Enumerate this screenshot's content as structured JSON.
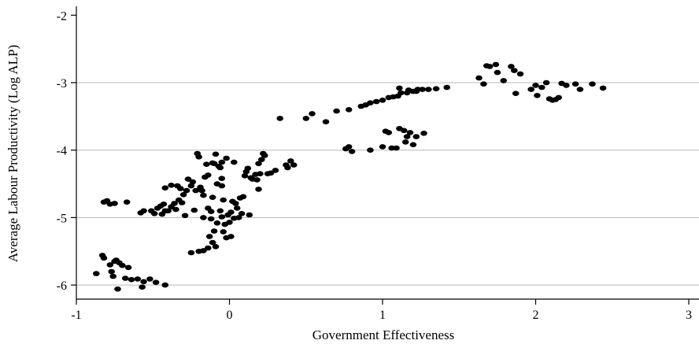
{
  "chart_data": {
    "type": "scatter",
    "title": "",
    "xlabel": "Government Effectiveness",
    "ylabel": "Average Labour Productivity (Log ALP)",
    "xlim": [
      -1.02,
      3.05
    ],
    "ylim": [
      -6.2,
      -1.9
    ],
    "x_ticks": [
      -1,
      0,
      1,
      2,
      3
    ],
    "x_tick_labels": [
      "-1",
      "0",
      "1",
      "2",
      "3"
    ],
    "y_ticks": [
      -2,
      -3,
      -4,
      -5,
      -6
    ],
    "y_tick_labels": [
      "-2",
      "-3",
      "-4",
      "-5",
      "-6"
    ],
    "grid": "horizontal",
    "marker_color": "#000000",
    "points": [
      [
        -0.87,
        -5.83
      ],
      [
        -0.83,
        -5.56
      ],
      [
        -0.82,
        -5.6
      ],
      [
        -0.78,
        -5.7
      ],
      [
        -0.77,
        -5.8
      ],
      [
        -0.76,
        -5.87
      ],
      [
        -0.75,
        -5.65
      ],
      [
        -0.74,
        -5.63
      ],
      [
        -0.72,
        -5.67
      ],
      [
        -0.7,
        -5.71
      ],
      [
        -0.68,
        -5.9
      ],
      [
        -0.66,
        -5.74
      ],
      [
        -0.64,
        -5.92
      ],
      [
        -0.6,
        -5.91
      ],
      [
        -0.56,
        -5.95
      ],
      [
        -0.52,
        -5.91
      ],
      [
        -0.48,
        -5.96
      ],
      [
        -0.42,
        -6.0
      ],
      [
        -0.73,
        -6.06
      ],
      [
        -0.57,
        -6.03
      ],
      [
        -0.82,
        -4.77
      ],
      [
        -0.8,
        -4.75
      ],
      [
        -0.78,
        -4.8
      ],
      [
        -0.75,
        -4.79
      ],
      [
        -0.67,
        -4.77
      ],
      [
        -0.58,
        -4.93
      ],
      [
        -0.56,
        -4.9
      ],
      [
        -0.51,
        -4.9
      ],
      [
        -0.49,
        -4.94
      ],
      [
        -0.47,
        -4.86
      ],
      [
        -0.45,
        -4.83
      ],
      [
        -0.44,
        -4.95
      ],
      [
        -0.43,
        -4.8
      ],
      [
        -0.42,
        -4.9
      ],
      [
        -0.4,
        -4.9
      ],
      [
        -0.38,
        -4.84
      ],
      [
        -0.36,
        -4.79
      ],
      [
        -0.35,
        -4.88
      ],
      [
        -0.33,
        -4.74
      ],
      [
        -0.31,
        -4.78
      ],
      [
        -0.32,
        -4.57
      ],
      [
        -0.3,
        -4.66
      ],
      [
        -0.28,
        -4.6
      ],
      [
        -0.27,
        -4.43
      ],
      [
        -0.25,
        -4.53
      ],
      [
        -0.24,
        -4.47
      ],
      [
        -0.22,
        -4.6
      ],
      [
        -0.21,
        -4.05
      ],
      [
        -0.2,
        -4.1
      ],
      [
        -0.19,
        -4.55
      ],
      [
        -0.18,
        -4.6
      ],
      [
        -0.17,
        -4.67
      ],
      [
        -0.16,
        -4.4
      ],
      [
        -0.14,
        -4.37
      ],
      [
        -0.14,
        -4.86
      ],
      [
        -0.12,
        -4.91
      ],
      [
        -0.11,
        -4.7
      ],
      [
        -0.1,
        -4.2
      ],
      [
        -0.09,
        -4.06
      ],
      [
        -0.07,
        -4.24
      ],
      [
        -0.06,
        -4.26
      ],
      [
        -0.05,
        -4.18
      ],
      [
        -0.05,
        -4.53
      ],
      [
        -0.05,
        -4.99
      ],
      [
        -0.04,
        -5.21
      ],
      [
        -0.03,
        -5.1
      ],
      [
        -0.02,
        -5.3
      ],
      [
        -0.01,
        -4.96
      ],
      [
        0.0,
        -5.07
      ],
      [
        0.01,
        -4.92
      ],
      [
        0.01,
        -5.28
      ],
      [
        0.02,
        -4.76
      ],
      [
        0.03,
        -5.01
      ],
      [
        0.04,
        -4.79
      ],
      [
        0.05,
        -4.86
      ],
      [
        0.06,
        -5.0
      ],
      [
        0.07,
        -4.71
      ],
      [
        0.08,
        -4.94
      ],
      [
        0.09,
        -4.69
      ],
      [
        0.1,
        -4.38
      ],
      [
        0.11,
        -4.32
      ],
      [
        0.12,
        -4.27
      ],
      [
        0.13,
        -4.96
      ],
      [
        0.14,
        -4.41
      ],
      [
        0.15,
        -4.43
      ],
      [
        0.17,
        -4.36
      ],
      [
        0.18,
        -4.44
      ],
      [
        0.19,
        -4.58
      ],
      [
        0.2,
        -4.35
      ],
      [
        0.21,
        -4.14
      ],
      [
        0.22,
        -4.05
      ],
      [
        0.23,
        -4.08
      ],
      [
        0.25,
        -4.35
      ],
      [
        0.27,
        -4.34
      ],
      [
        0.3,
        -4.3
      ],
      [
        0.33,
        -3.53
      ],
      [
        0.37,
        -4.22
      ],
      [
        0.38,
        -4.26
      ],
      [
        0.4,
        -4.16
      ],
      [
        0.42,
        -4.22
      ],
      [
        -0.11,
        -4.19
      ],
      [
        -0.15,
        -4.21
      ],
      [
        -0.08,
        -4.5
      ],
      [
        -0.04,
        -4.74
      ],
      [
        -0.06,
        -4.9
      ],
      [
        -0.08,
        -5.08
      ],
      [
        -0.1,
        -5.2
      ],
      [
        -0.13,
        -5.28
      ],
      [
        -0.11,
        -5.37
      ],
      [
        -0.09,
        -5.43
      ],
      [
        -0.14,
        -5.45
      ],
      [
        -0.17,
        -5.49
      ],
      [
        -0.2,
        -5.5
      ],
      [
        -0.25,
        -5.52
      ],
      [
        -0.05,
        -4.42
      ],
      [
        -0.23,
        -4.89
      ],
      [
        -0.29,
        -4.97
      ],
      [
        -0.17,
        -5.0
      ],
      [
        -0.12,
        -5.02
      ],
      [
        -0.42,
        -4.56
      ],
      [
        -0.38,
        -4.52
      ],
      [
        -0.34,
        -4.53
      ],
      [
        -0.02,
        -4.12
      ],
      [
        0.03,
        -4.18
      ],
      [
        0.19,
        -4.2
      ],
      [
        0.5,
        -3.53
      ],
      [
        0.54,
        -3.46
      ],
      [
        0.63,
        -3.58
      ],
      [
        0.7,
        -3.42
      ],
      [
        0.78,
        -3.4
      ],
      [
        0.86,
        -3.35
      ],
      [
        0.89,
        -3.33
      ],
      [
        0.92,
        -3.3
      ],
      [
        0.96,
        -3.28
      ],
      [
        1.0,
        -3.26
      ],
      [
        1.04,
        -3.22
      ],
      [
        1.07,
        -3.21
      ],
      [
        1.1,
        -3.2
      ],
      [
        1.12,
        -3.15
      ],
      [
        1.16,
        -3.15
      ],
      [
        1.2,
        -3.13
      ],
      [
        1.23,
        -3.1
      ],
      [
        1.26,
        -3.1
      ],
      [
        1.3,
        -3.1
      ],
      [
        1.35,
        -3.09
      ],
      [
        1.42,
        -3.07
      ],
      [
        1.11,
        -3.08
      ],
      [
        1.17,
        -3.11
      ],
      [
        1.22,
        -3.13
      ],
      [
        0.76,
        -3.98
      ],
      [
        0.78,
        -3.95
      ],
      [
        0.8,
        -4.02
      ],
      [
        0.92,
        -4.0
      ],
      [
        1.0,
        -3.95
      ],
      [
        1.02,
        -3.72
      ],
      [
        1.04,
        -3.74
      ],
      [
        1.06,
        -3.97
      ],
      [
        1.09,
        -3.97
      ],
      [
        1.11,
        -3.68
      ],
      [
        1.14,
        -3.71
      ],
      [
        1.15,
        -3.88
      ],
      [
        1.16,
        -3.8
      ],
      [
        1.18,
        -3.74
      ],
      [
        1.2,
        -3.92
      ],
      [
        1.22,
        -3.8
      ],
      [
        1.27,
        -3.75
      ],
      [
        1.63,
        -2.93
      ],
      [
        1.66,
        -3.02
      ],
      [
        1.68,
        -2.75
      ],
      [
        1.7,
        -2.76
      ],
      [
        1.74,
        -2.73
      ],
      [
        1.75,
        -2.85
      ],
      [
        1.79,
        -2.97
      ],
      [
        1.84,
        -2.76
      ],
      [
        1.86,
        -2.82
      ],
      [
        1.87,
        -3.16
      ],
      [
        1.9,
        -2.87
      ],
      [
        1.97,
        -3.1
      ],
      [
        2.0,
        -3.04
      ],
      [
        2.01,
        -3.19
      ],
      [
        2.04,
        -3.07
      ],
      [
        2.07,
        -3.0
      ],
      [
        2.09,
        -3.24
      ],
      [
        2.11,
        -3.26
      ],
      [
        2.13,
        -3.25
      ],
      [
        2.15,
        -3.22
      ],
      [
        2.17,
        -3.01
      ],
      [
        2.2,
        -3.04
      ],
      [
        2.26,
        -3.02
      ],
      [
        2.29,
        -3.1
      ],
      [
        2.37,
        -3.02
      ],
      [
        2.44,
        -3.08
      ]
    ]
  }
}
